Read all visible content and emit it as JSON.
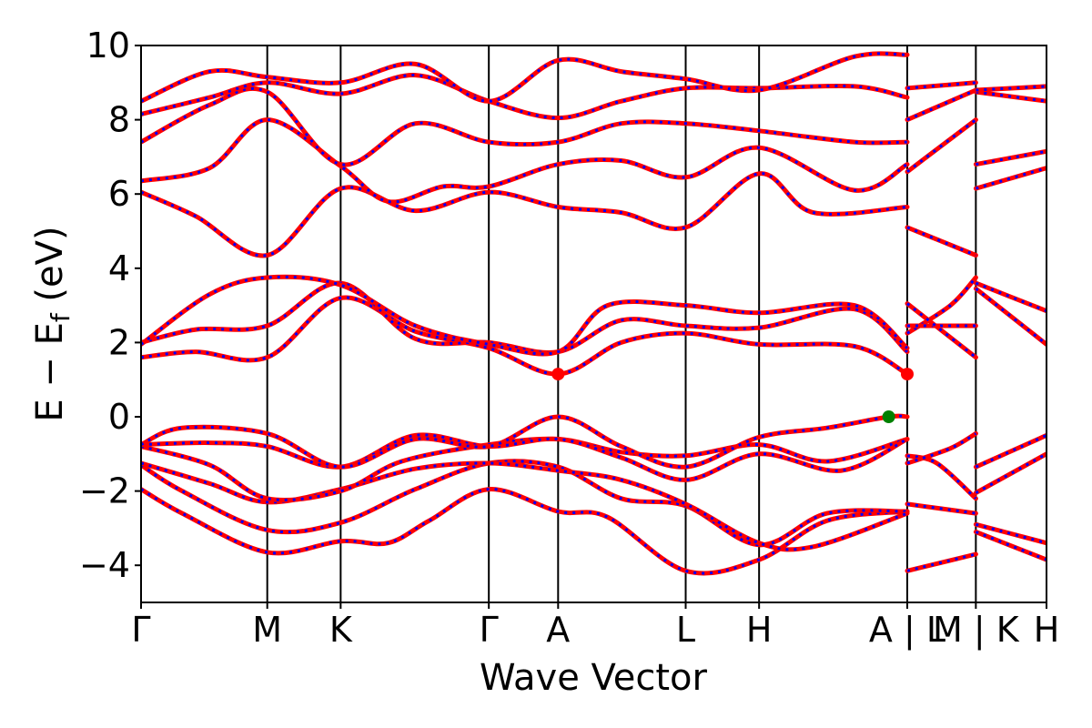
{
  "chart_data": {
    "type": "line",
    "title": "",
    "xlabel": "Wave Vector",
    "ylabel": "E − E",
    "ylabel_subscript": "f",
    "ylabel_unit": "(eV)",
    "ylim": [
      -5,
      10
    ],
    "xlim": [
      0,
      6.6
    ],
    "yticks": [
      -4,
      -2,
      0,
      2,
      4,
      6,
      8,
      10
    ],
    "xticks": [
      {
        "label": "Γ",
        "x": 0.0
      },
      {
        "label": "M",
        "x": 0.92
      },
      {
        "label": "K",
        "x": 1.455
      },
      {
        "label": "Γ",
        "x": 2.535
      },
      {
        "label": "A",
        "x": 3.04
      },
      {
        "label": "L",
        "x": 3.97
      },
      {
        "label": "H",
        "x": 4.505
      },
      {
        "label": "A | L",
        "x": 5.585
      },
      {
        "label": "M | K",
        "x": 6.085
      },
      {
        "label": "H",
        "x": 6.6
      }
    ],
    "series": [
      {
        "color": "#ff0000",
        "style": "solid"
      },
      {
        "color": "#0000ff",
        "style": "dashed"
      }
    ],
    "markers": [
      {
        "x": 3.04,
        "y": 1.15,
        "color": "#ff0000"
      },
      {
        "x": 5.585,
        "y": 1.15,
        "color": "#ff0000"
      },
      {
        "x": 5.45,
        "y": 0.0,
        "color": "#008000"
      }
    ],
    "bands": [
      [
        [
          0,
          -1.95
        ],
        [
          0.3,
          -2.6
        ],
        [
          0.92,
          -3.65
        ],
        [
          1.455,
          -3.35
        ],
        [
          1.8,
          -3.4
        ],
        [
          2.1,
          -2.8
        ],
        [
          2.535,
          -1.95
        ],
        [
          3.04,
          -2.55
        ],
        [
          3.4,
          -2.7
        ],
        [
          3.97,
          -4.15
        ],
        [
          4.505,
          -3.85
        ],
        [
          5.0,
          -2.8
        ],
        [
          5.585,
          -2.55
        ]
      ],
      [
        [
          0,
          -1.3
        ],
        [
          0.3,
          -2.0
        ],
        [
          0.92,
          -3.05
        ],
        [
          1.455,
          -2.85
        ],
        [
          2.0,
          -1.95
        ],
        [
          2.535,
          -1.25
        ],
        [
          3.04,
          -1.35
        ],
        [
          3.5,
          -2.2
        ],
        [
          3.97,
          -2.4
        ],
        [
          4.505,
          -3.45
        ],
        [
          5.0,
          -2.6
        ],
        [
          5.585,
          -2.55
        ]
      ],
      [
        [
          0,
          -1.25
        ],
        [
          0.5,
          -1.8
        ],
        [
          0.92,
          -2.3
        ],
        [
          1.455,
          -1.95
        ],
        [
          2.0,
          -1.4
        ],
        [
          2.535,
          -1.25
        ],
        [
          3.04,
          -1.45
        ],
        [
          3.5,
          -1.7
        ],
        [
          3.97,
          -2.35
        ],
        [
          4.505,
          -3.4
        ],
        [
          4.9,
          -3.5
        ],
        [
          5.585,
          -2.6
        ]
      ],
      [
        [
          0,
          -0.8
        ],
        [
          0.5,
          -1.3
        ],
        [
          0.92,
          -2.2
        ],
        [
          1.455,
          -2.0
        ],
        [
          1.9,
          -1.2
        ],
        [
          2.535,
          -0.75
        ],
        [
          3.04,
          -0.6
        ],
        [
          3.5,
          -0.95
        ],
        [
          3.97,
          -1.05
        ],
        [
          4.505,
          -0.75
        ],
        [
          5.0,
          -1.2
        ],
        [
          5.585,
          -0.6
        ]
      ],
      [
        [
          0,
          -0.75
        ],
        [
          0.5,
          -0.7
        ],
        [
          0.92,
          -0.8
        ],
        [
          1.455,
          -1.35
        ],
        [
          2.0,
          -0.5
        ],
        [
          2.535,
          -0.8
        ],
        [
          3.04,
          -0.6
        ],
        [
          3.5,
          -1.1
        ],
        [
          3.97,
          -1.7
        ],
        [
          4.505,
          -1.0
        ],
        [
          5.1,
          -1.45
        ],
        [
          5.585,
          -0.6
        ]
      ],
      [
        [
          0,
          -0.75
        ],
        [
          0.3,
          -0.3
        ],
        [
          0.92,
          -0.45
        ],
        [
          1.455,
          -1.35
        ],
        [
          2.0,
          -0.6
        ],
        [
          2.535,
          -0.8
        ],
        [
          3.04,
          0.0
        ],
        [
          3.5,
          -0.8
        ],
        [
          3.97,
          -1.35
        ],
        [
          4.505,
          -0.55
        ],
        [
          5.0,
          -0.3
        ],
        [
          5.45,
          0.0
        ],
        [
          5.585,
          0.0
        ]
      ],
      [
        [
          0,
          1.6
        ],
        [
          0.4,
          1.75
        ],
        [
          0.92,
          1.6
        ],
        [
          1.455,
          3.2
        ],
        [
          2.0,
          2.3
        ],
        [
          2.535,
          1.85
        ],
        [
          3.04,
          1.15
        ],
        [
          3.5,
          2.0
        ],
        [
          3.97,
          2.25
        ],
        [
          4.505,
          1.95
        ],
        [
          5.2,
          1.9
        ],
        [
          5.585,
          1.15
        ]
      ],
      [
        [
          0,
          2.0
        ],
        [
          0.4,
          2.35
        ],
        [
          0.92,
          2.45
        ],
        [
          1.455,
          3.6
        ],
        [
          2.0,
          2.1
        ],
        [
          2.535,
          2.0
        ],
        [
          3.04,
          1.75
        ],
        [
          3.5,
          2.6
        ],
        [
          3.97,
          2.45
        ],
        [
          4.505,
          2.4
        ],
        [
          5.2,
          2.9
        ],
        [
          5.585,
          1.75
        ]
      ],
      [
        [
          0,
          1.95
        ],
        [
          0.5,
          3.3
        ],
        [
          0.92,
          3.75
        ],
        [
          1.455,
          3.55
        ],
        [
          2.0,
          2.45
        ],
        [
          2.535,
          1.95
        ],
        [
          3.04,
          1.75
        ],
        [
          3.4,
          3.0
        ],
        [
          3.97,
          3.0
        ],
        [
          4.505,
          2.8
        ],
        [
          5.2,
          3.0
        ],
        [
          5.585,
          1.85
        ]
      ],
      [
        [
          0,
          6.05
        ],
        [
          0.4,
          5.4
        ],
        [
          0.92,
          4.35
        ],
        [
          1.455,
          6.15
        ],
        [
          2.0,
          5.55
        ],
        [
          2.535,
          6.05
        ],
        [
          3.04,
          5.65
        ],
        [
          3.5,
          5.5
        ],
        [
          3.97,
          5.1
        ],
        [
          4.505,
          6.55
        ],
        [
          4.9,
          5.5
        ],
        [
          5.585,
          5.65
        ]
      ],
      [
        [
          0,
          6.35
        ],
        [
          0.5,
          6.7
        ],
        [
          0.92,
          8.0
        ],
        [
          1.455,
          6.75
        ],
        [
          1.8,
          5.8
        ],
        [
          2.2,
          6.2
        ],
        [
          2.535,
          6.2
        ],
        [
          3.04,
          6.8
        ],
        [
          3.5,
          6.9
        ],
        [
          3.97,
          6.45
        ],
        [
          4.505,
          7.25
        ],
        [
          5.2,
          6.1
        ],
        [
          5.585,
          6.8
        ]
      ],
      [
        [
          0,
          7.4
        ],
        [
          0.5,
          8.4
        ],
        [
          0.92,
          8.75
        ],
        [
          1.455,
          6.8
        ],
        [
          2.0,
          7.9
        ],
        [
          2.535,
          7.4
        ],
        [
          3.04,
          7.4
        ],
        [
          3.5,
          7.9
        ],
        [
          3.97,
          7.9
        ],
        [
          4.505,
          7.7
        ],
        [
          5.2,
          7.4
        ],
        [
          5.585,
          7.4
        ]
      ],
      [
        [
          0,
          8.15
        ],
        [
          0.5,
          8.6
        ],
        [
          0.92,
          9.0
        ],
        [
          1.455,
          8.7
        ],
        [
          2.0,
          9.2
        ],
        [
          2.535,
          8.5
        ],
        [
          3.04,
          8.05
        ],
        [
          3.5,
          8.5
        ],
        [
          3.97,
          8.85
        ],
        [
          4.505,
          8.85
        ],
        [
          5.2,
          8.9
        ],
        [
          5.585,
          8.6
        ]
      ],
      [
        [
          0,
          8.5
        ],
        [
          0.5,
          9.3
        ],
        [
          0.92,
          9.15
        ],
        [
          1.455,
          9.0
        ],
        [
          2.0,
          9.5
        ],
        [
          2.535,
          8.5
        ],
        [
          3.04,
          9.6
        ],
        [
          3.5,
          9.3
        ],
        [
          3.97,
          9.1
        ],
        [
          4.505,
          8.8
        ],
        [
          5.2,
          9.7
        ],
        [
          5.585,
          9.75
        ]
      ],
      [
        [
          5.585,
          -4.15
        ],
        [
          6.085,
          -3.7
        ]
      ],
      [
        [
          5.585,
          -2.35
        ],
        [
          6.085,
          -2.6
        ]
      ],
      [
        [
          5.585,
          -1.05
        ],
        [
          5.8,
          -1.25
        ],
        [
          6.085,
          -2.2
        ]
      ],
      [
        [
          5.585,
          -1.25
        ],
        [
          5.9,
          -0.85
        ],
        [
          6.085,
          -0.45
        ]
      ],
      [
        [
          5.585,
          2.25
        ],
        [
          5.9,
          3.0
        ],
        [
          6.085,
          3.75
        ]
      ],
      [
        [
          5.585,
          2.45
        ],
        [
          6.085,
          2.45
        ]
      ],
      [
        [
          5.585,
          3.05
        ],
        [
          6.085,
          1.6
        ]
      ],
      [
        [
          5.585,
          5.1
        ],
        [
          6.085,
          4.35
        ]
      ],
      [
        [
          5.585,
          6.6
        ],
        [
          6.085,
          8.0
        ]
      ],
      [
        [
          5.585,
          8.0
        ],
        [
          6.085,
          8.8
        ]
      ],
      [
        [
          5.585,
          8.85
        ],
        [
          6.085,
          9.0
        ]
      ],
      [
        [
          6.085,
          -1.35
        ],
        [
          6.6,
          -0.5
        ]
      ],
      [
        [
          6.085,
          -2.05
        ],
        [
          6.6,
          -1.0
        ]
      ],
      [
        [
          6.085,
          -2.9
        ],
        [
          6.6,
          -3.4
        ]
      ],
      [
        [
          6.085,
          -3.1
        ],
        [
          6.6,
          -3.85
        ]
      ],
      [
        [
          6.085,
          3.6
        ],
        [
          6.6,
          2.85
        ]
      ],
      [
        [
          6.085,
          3.45
        ],
        [
          6.6,
          1.95
        ]
      ],
      [
        [
          6.085,
          6.15
        ],
        [
          6.6,
          6.7
        ]
      ],
      [
        [
          6.085,
          6.8
        ],
        [
          6.6,
          7.15
        ]
      ],
      [
        [
          6.085,
          8.75
        ],
        [
          6.6,
          8.5
        ]
      ],
      [
        [
          6.085,
          8.8
        ],
        [
          6.6,
          8.9
        ]
      ]
    ]
  }
}
